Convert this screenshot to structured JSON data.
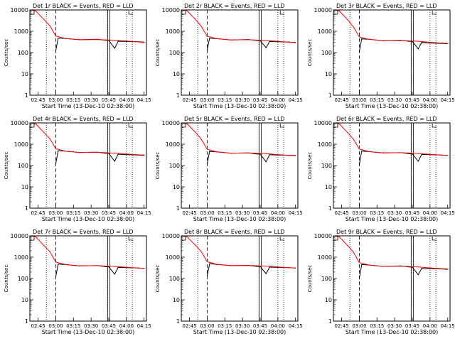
{
  "figure": {
    "ylabel": "Counts/sec",
    "xlabel": "Start Time (13-Dec-10 02:38:00)",
    "colors": {
      "events": "#000000",
      "lld": "#ff0000",
      "background": "#ffffff"
    }
  },
  "chart_data": [
    {
      "type": "line",
      "title": "Det 1r BLACK = Events, RED = LLD",
      "ylabel": "Counts/sec",
      "xlabel": "Start Time (13-Dec-10 02:38:00)",
      "ylim": [
        1,
        10000
      ],
      "yscale": "log",
      "yticks": [
        1,
        10,
        100,
        1000,
        10000
      ],
      "xticks": [
        "02:45",
        "03:00",
        "03:15",
        "03:30",
        "03:45",
        "04:00",
        "04:15"
      ],
      "legend": "none",
      "grid": false,
      "series": [
        {
          "color": "#000000",
          "x": [
            "03:00",
            "03:02",
            "03:08",
            "03:20",
            "03:35",
            "03:42",
            "03:45",
            "03:50",
            "03:53",
            "04:00",
            "04:10",
            "04:15"
          ],
          "values": [
            120,
            480,
            460,
            400,
            420,
            380,
            370,
            160,
            340,
            330,
            320,
            310
          ]
        },
        {
          "color": "#ff0000",
          "x": [
            "02:38",
            "02:43",
            "02:50",
            "02:55",
            "03:00",
            "03:08",
            "03:20",
            "03:35",
            "03:50",
            "04:05",
            "04:15"
          ],
          "values": [
            10000,
            9000,
            3500,
            1800,
            600,
            460,
            400,
            410,
            380,
            330,
            300
          ]
        }
      ]
    },
    {
      "type": "line",
      "title": "Det 2r BLACK = Events, RED = LLD",
      "ylabel": "Counts/sec",
      "xlabel": "Start Time (13-Dec-10 02:38:00)",
      "ylim": [
        1,
        10000
      ],
      "yscale": "log",
      "yticks": [
        1,
        10,
        100,
        1000,
        10000
      ],
      "xticks": [
        "02:45",
        "03:00",
        "03:15",
        "03:30",
        "03:45",
        "04:00",
        "04:15"
      ],
      "legend": "none",
      "grid": false,
      "series": [
        {
          "color": "#000000",
          "x": [
            "03:00",
            "03:02",
            "03:08",
            "03:20",
            "03:35",
            "03:42",
            "03:45",
            "03:50",
            "03:53",
            "04:00",
            "04:10",
            "04:15"
          ],
          "values": [
            130,
            470,
            450,
            390,
            410,
            370,
            360,
            170,
            330,
            320,
            310,
            300
          ]
        },
        {
          "color": "#ff0000",
          "x": [
            "02:38",
            "02:43",
            "02:50",
            "02:55",
            "03:00",
            "03:08",
            "03:20",
            "03:35",
            "03:50",
            "04:05",
            "04:15"
          ],
          "values": [
            10000,
            9000,
            3600,
            1700,
            580,
            450,
            390,
            400,
            370,
            320,
            290
          ]
        }
      ]
    },
    {
      "type": "line",
      "title": "Det 3r BLACK = Events, RED = LLD",
      "ylabel": "Counts/sec",
      "xlabel": "Start Time (13-Dec-10 02:38:00)",
      "ylim": [
        1,
        10000
      ],
      "yscale": "log",
      "yticks": [
        1,
        10,
        100,
        1000,
        10000
      ],
      "xticks": [
        "02:45",
        "03:00",
        "03:15",
        "03:30",
        "03:45",
        "04:00",
        "04:15"
      ],
      "legend": "none",
      "grid": false,
      "series": [
        {
          "color": "#000000",
          "x": [
            "03:00",
            "03:02",
            "03:08",
            "03:20",
            "03:35",
            "03:42",
            "03:45",
            "03:50",
            "03:53",
            "04:00",
            "04:10",
            "04:15"
          ],
          "values": [
            110,
            440,
            420,
            360,
            380,
            340,
            330,
            150,
            300,
            280,
            270,
            260
          ]
        },
        {
          "color": "#ff0000",
          "x": [
            "02:38",
            "02:43",
            "02:50",
            "02:55",
            "03:00",
            "03:08",
            "03:20",
            "03:35",
            "03:50",
            "04:05",
            "04:15"
          ],
          "values": [
            10000,
            9000,
            3500,
            1600,
            540,
            420,
            360,
            370,
            340,
            290,
            270
          ]
        }
      ]
    },
    {
      "type": "line",
      "title": "Det 4r BLACK = Events, RED = LLD",
      "ylabel": "Counts/sec",
      "xlabel": "Start Time (13-Dec-10 02:38:00)",
      "ylim": [
        1,
        10000
      ],
      "yscale": "log",
      "yticks": [
        1,
        10,
        100,
        1000,
        10000
      ],
      "xticks": [
        "02:45",
        "03:00",
        "03:15",
        "03:30",
        "03:45",
        "04:00",
        "04:15"
      ],
      "legend": "none",
      "grid": false,
      "series": [
        {
          "color": "#000000",
          "x": [
            "03:00",
            "03:02",
            "03:08",
            "03:20",
            "03:35",
            "03:42",
            "03:45",
            "03:50",
            "03:53",
            "04:00",
            "04:10",
            "04:15"
          ],
          "values": [
            120,
            500,
            470,
            410,
            420,
            380,
            370,
            160,
            340,
            320,
            310,
            300
          ]
        },
        {
          "color": "#ff0000",
          "x": [
            "02:38",
            "02:43",
            "02:50",
            "02:55",
            "03:00",
            "03:08",
            "03:20",
            "03:35",
            "03:50",
            "04:05",
            "04:15"
          ],
          "values": [
            10000,
            9000,
            3500,
            1800,
            620,
            470,
            410,
            420,
            380,
            330,
            310
          ]
        }
      ]
    },
    {
      "type": "line",
      "title": "Det 5r BLACK = Events, RED = LLD",
      "ylabel": "Counts/sec",
      "xlabel": "Start Time (13-Dec-10 02:38:00)",
      "ylim": [
        1,
        10000
      ],
      "yscale": "log",
      "yticks": [
        1,
        10,
        100,
        1000,
        10000
      ],
      "xticks": [
        "02:45",
        "03:00",
        "03:15",
        "03:30",
        "03:45",
        "04:00",
        "04:15"
      ],
      "legend": "none",
      "grid": false,
      "series": [
        {
          "color": "#000000",
          "x": [
            "03:00",
            "03:02",
            "03:08",
            "03:20",
            "03:35",
            "03:42",
            "03:45",
            "03:50",
            "03:53",
            "04:00",
            "04:10",
            "04:15"
          ],
          "values": [
            120,
            460,
            440,
            380,
            390,
            350,
            340,
            150,
            320,
            310,
            300,
            290
          ]
        },
        {
          "color": "#ff0000",
          "x": [
            "02:38",
            "02:43",
            "02:50",
            "02:55",
            "03:00",
            "03:08",
            "03:20",
            "03:35",
            "03:50",
            "04:05",
            "04:15"
          ],
          "values": [
            10000,
            9000,
            3600,
            1700,
            580,
            440,
            380,
            390,
            360,
            310,
            300
          ]
        }
      ]
    },
    {
      "type": "line",
      "title": "Det 6r BLACK = Events, RED = LLD",
      "ylabel": "Counts/sec",
      "xlabel": "Start Time (13-Dec-10 02:38:00)",
      "ylim": [
        1,
        10000
      ],
      "yscale": "log",
      "yticks": [
        1,
        10,
        100,
        1000,
        10000
      ],
      "xticks": [
        "02:45",
        "03:00",
        "03:15",
        "03:30",
        "03:45",
        "04:00",
        "04:15"
      ],
      "legend": "none",
      "grid": false,
      "series": [
        {
          "color": "#000000",
          "x": [
            "03:00",
            "03:02",
            "03:08",
            "03:20",
            "03:35",
            "03:42",
            "03:45",
            "03:50",
            "03:53",
            "04:00",
            "04:10",
            "04:15"
          ],
          "values": [
            110,
            480,
            450,
            390,
            400,
            360,
            350,
            160,
            330,
            320,
            310,
            300
          ]
        },
        {
          "color": "#ff0000",
          "x": [
            "02:38",
            "02:43",
            "02:50",
            "02:55",
            "03:00",
            "03:08",
            "03:20",
            "03:35",
            "03:50",
            "04:05",
            "04:15"
          ],
          "values": [
            10000,
            9000,
            3500,
            1700,
            600,
            450,
            390,
            400,
            370,
            320,
            300
          ]
        }
      ]
    },
    {
      "type": "line",
      "title": "Det 7r BLACK = Events, RED = LLD",
      "ylabel": "Counts/sec",
      "xlabel": "Start Time (13-Dec-10 02:38:00)",
      "ylim": [
        1,
        10000
      ],
      "yscale": "log",
      "yticks": [
        1,
        10,
        100,
        1000,
        10000
      ],
      "xticks": [
        "02:45",
        "03:00",
        "03:15",
        "03:30",
        "03:45",
        "04:00",
        "04:15"
      ],
      "legend": "none",
      "grid": false,
      "series": [
        {
          "color": "#000000",
          "x": [
            "03:00",
            "03:02",
            "03:08",
            "03:20",
            "03:35",
            "03:42",
            "03:45",
            "03:50",
            "03:53",
            "04:00",
            "04:10",
            "04:15"
          ],
          "values": [
            120,
            470,
            450,
            390,
            400,
            360,
            350,
            160,
            330,
            320,
            310,
            300
          ]
        },
        {
          "color": "#ff0000",
          "x": [
            "02:38",
            "02:43",
            "02:50",
            "02:55",
            "03:00",
            "03:08",
            "03:20",
            "03:35",
            "03:50",
            "04:05",
            "04:15"
          ],
          "values": [
            10000,
            9000,
            3500,
            1800,
            590,
            450,
            390,
            400,
            370,
            320,
            300
          ]
        }
      ]
    },
    {
      "type": "line",
      "title": "Det 8r BLACK = Events, RED = LLD",
      "ylabel": "Counts/sec",
      "xlabel": "Start Time (13-Dec-10 02:38:00)",
      "ylim": [
        1,
        10000
      ],
      "yscale": "log",
      "yticks": [
        1,
        10,
        100,
        1000,
        10000
      ],
      "xticks": [
        "02:45",
        "03:00",
        "03:15",
        "03:30",
        "03:45",
        "04:00",
        "04:15"
      ],
      "legend": "none",
      "grid": false,
      "series": [
        {
          "color": "#000000",
          "x": [
            "03:00",
            "03:02",
            "03:08",
            "03:20",
            "03:35",
            "03:42",
            "03:45",
            "03:50",
            "03:53",
            "04:00",
            "04:10",
            "04:15"
          ],
          "values": [
            130,
            490,
            460,
            400,
            410,
            370,
            360,
            170,
            340,
            330,
            320,
            310
          ]
        },
        {
          "color": "#ff0000",
          "x": [
            "02:38",
            "02:43",
            "02:50",
            "02:55",
            "03:00",
            "03:08",
            "03:20",
            "03:35",
            "03:50",
            "04:05",
            "04:15"
          ],
          "values": [
            10000,
            9000,
            3600,
            1800,
            610,
            460,
            400,
            410,
            380,
            330,
            310
          ]
        }
      ]
    },
    {
      "type": "line",
      "title": "Det 9r BLACK = Events, RED = LLD",
      "ylabel": "Counts/sec",
      "xlabel": "Start Time (13-Dec-10 02:38:00)",
      "ylim": [
        1,
        10000
      ],
      "yscale": "log",
      "yticks": [
        1,
        10,
        100,
        1000,
        10000
      ],
      "xticks": [
        "02:45",
        "03:00",
        "03:15",
        "03:30",
        "03:45",
        "04:00",
        "04:15"
      ],
      "legend": "none",
      "grid": false,
      "series": [
        {
          "color": "#000000",
          "x": [
            "03:00",
            "03:02",
            "03:08",
            "03:20",
            "03:35",
            "03:42",
            "03:45",
            "03:50",
            "03:53",
            "04:00",
            "04:10",
            "04:15"
          ],
          "values": [
            100,
            450,
            430,
            370,
            390,
            350,
            340,
            150,
            300,
            290,
            280,
            270
          ]
        },
        {
          "color": "#ff0000",
          "x": [
            "02:38",
            "02:43",
            "02:50",
            "02:55",
            "03:00",
            "03:08",
            "03:20",
            "03:35",
            "03:50",
            "04:05",
            "04:15"
          ],
          "values": [
            10000,
            9000,
            3500,
            1700,
            560,
            430,
            370,
            380,
            350,
            300,
            280
          ]
        }
      ]
    }
  ]
}
